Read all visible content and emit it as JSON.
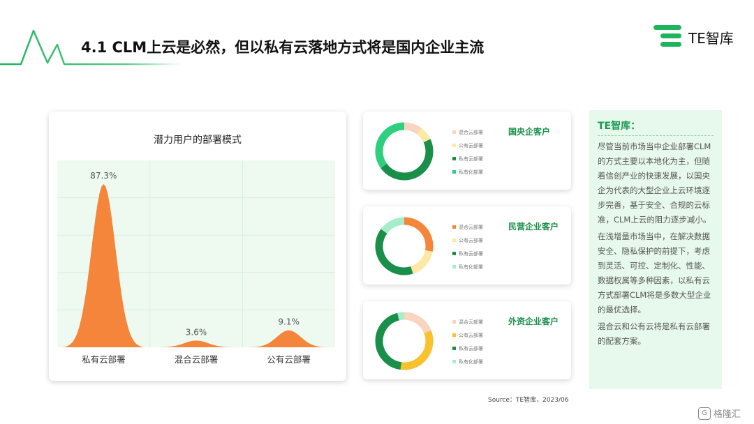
{
  "header": {
    "title": "4.1 CLM上云是必然，但以私有云落地方式将是国内企业主流"
  },
  "logo": {
    "text": "TE智库",
    "color": "#1fb45e"
  },
  "chart_data": [
    {
      "type": "area",
      "title": "潜力用户的部署模式",
      "categories": [
        "私有云部署",
        "混合云部署",
        "公有云部署"
      ],
      "values": [
        87.3,
        3.6,
        9.1
      ],
      "labels": [
        "87.3%",
        "3.6%",
        "9.1%"
      ],
      "ylim": [
        0,
        100
      ],
      "grid": true,
      "colors": {
        "fill": "#f5853a",
        "background": "#eefaf0",
        "grid": "#d6eedd"
      }
    },
    {
      "type": "pie",
      "title": "国央企客户",
      "categories": [
        "混合云部署",
        "公有云部署",
        "私有云部署",
        "私有化部署"
      ],
      "values": [
        10,
        8,
        47,
        35
      ],
      "colors": [
        "#f9d4c0",
        "#fde8a6",
        "#1a8f4a",
        "#2ed07f"
      ]
    },
    {
      "type": "pie",
      "title": "民营企业客户",
      "categories": [
        "混合云部署",
        "公有云部署",
        "私有云部署",
        "私有化部署"
      ],
      "values": [
        28,
        17,
        40,
        15
      ],
      "colors": [
        "#f5853a",
        "#fde8a6",
        "#1a8f4a",
        "#a6eecb"
      ]
    },
    {
      "type": "pie",
      "title": "外资企业客户",
      "categories": [
        "混合云部署",
        "公有云部署",
        "私有云部署",
        "私有化部署"
      ],
      "values": [
        19,
        33,
        44,
        4
      ],
      "colors": [
        "#f9d4c0",
        "#f9c12e",
        "#1a8f4a",
        "#a6eecb"
      ]
    }
  ],
  "side_panel": {
    "title": "TE智库：",
    "paragraphs": [
      "尽管当前市场当中企业部署CLM的方式主要以本地化为主，但随着信创产业的快速发展，以国央企为代表的大型企业上云环境逐步完善，基于安全、合规的云标准，CLM上云的阻力逐步减小。",
      "在浅增量市场当中，在解决数据安全、隐私保护的前提下，考虑到灵活、可控、定制化、性能、数据权属等多种因素，以私有云方式部署CLM将是多数大型企业的最优选择。",
      "混合云和公有云将是私有云部署的配套方案。"
    ]
  },
  "source": "Source：TE智库，2023/06",
  "watermark": {
    "icon": "G",
    "text": "格隆汇"
  }
}
